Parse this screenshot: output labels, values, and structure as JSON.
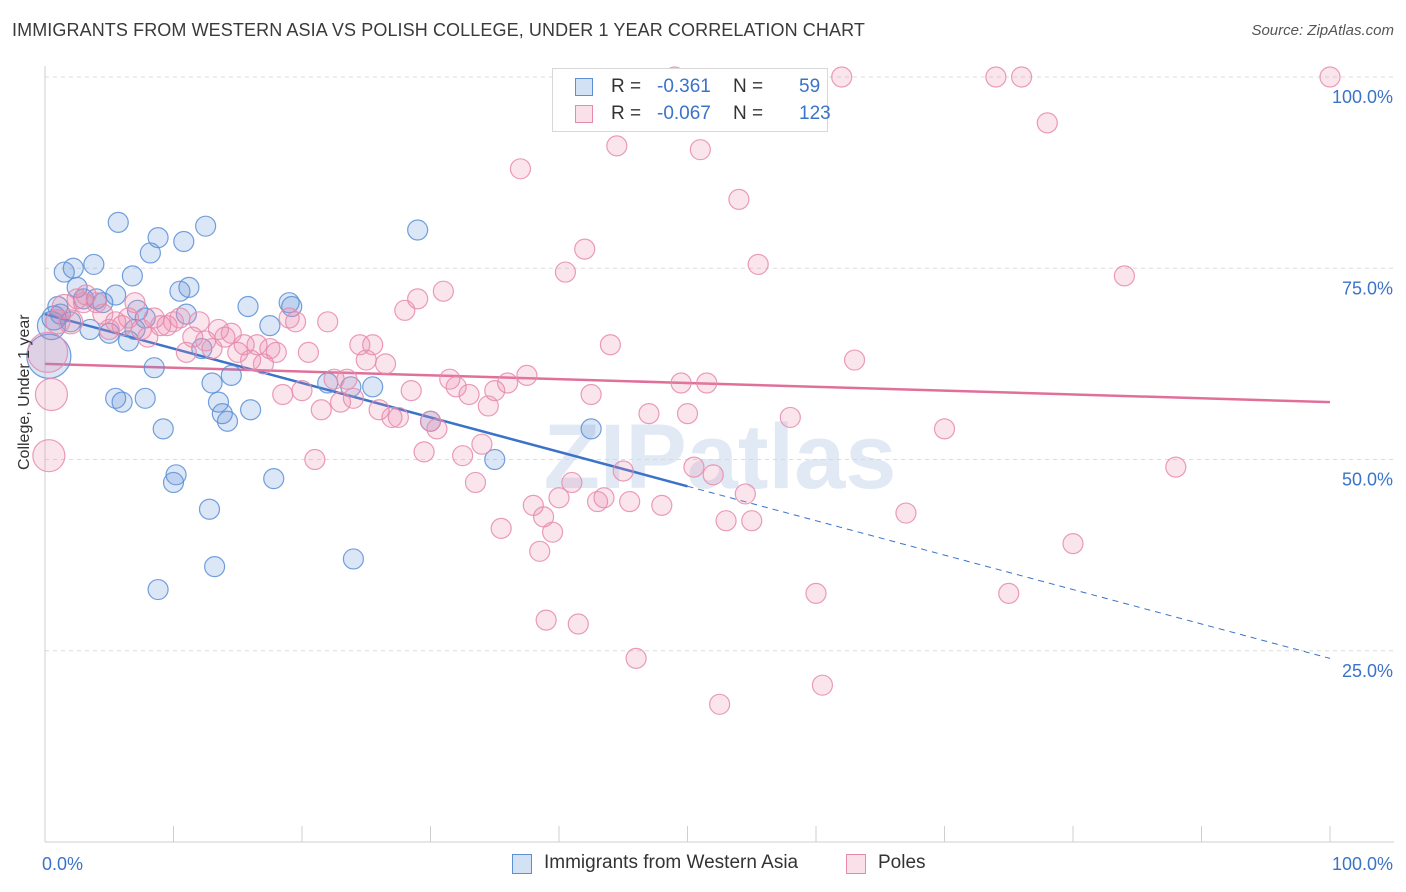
{
  "header": {
    "title": "IMMIGRANTS FROM WESTERN ASIA VS POLISH COLLEGE, UNDER 1 YEAR CORRELATION CHART",
    "source": "Source: ZipAtlas.com"
  },
  "watermark": "ZIPatlas",
  "legend": {
    "r_label": "R =",
    "n_label": "N =",
    "rows": [
      {
        "r": "-0.361",
        "n": "59",
        "color": "#5b8fd6"
      },
      {
        "r": "-0.067",
        "n": "123",
        "color": "#e88aab"
      }
    ]
  },
  "chart_data": {
    "type": "scatter",
    "ylabel": "College, Under 1 year",
    "x_tick_labels": [
      "0.0%",
      "100.0%"
    ],
    "y_tick_labels": [
      "25.0%",
      "50.0%",
      "75.0%",
      "100.0%"
    ],
    "xlim": [
      0,
      100
    ],
    "ylim": [
      0,
      100
    ],
    "grid": true,
    "legend_placement": "top-center",
    "series": [
      {
        "name": "Immigrants from Western Asia",
        "color": "#5b8fd6",
        "points": [
          [
            0.3,
            63.5,
            22
          ],
          [
            0.5,
            67.5,
            14
          ],
          [
            0.7,
            68.5,
            12
          ],
          [
            1,
            70,
            10
          ],
          [
            1.2,
            69,
            10
          ],
          [
            1.5,
            74.5,
            10
          ],
          [
            2,
            68,
            10
          ],
          [
            2.2,
            75,
            10
          ],
          [
            2.5,
            72.5,
            10
          ],
          [
            3,
            71,
            10
          ],
          [
            3.5,
            67,
            10
          ],
          [
            3.8,
            75.5,
            10
          ],
          [
            4,
            71,
            10
          ],
          [
            4.5,
            70.5,
            10
          ],
          [
            5,
            66.5,
            10
          ],
          [
            5.5,
            71.5,
            10
          ],
          [
            5.5,
            58,
            10
          ],
          [
            5.7,
            81,
            10
          ],
          [
            6,
            57.5,
            10
          ],
          [
            6.5,
            65.5,
            10
          ],
          [
            6.8,
            74,
            10
          ],
          [
            7,
            67,
            10
          ],
          [
            7.2,
            69.5,
            10
          ],
          [
            7.8,
            68.5,
            10
          ],
          [
            7.8,
            58,
            10
          ],
          [
            8.2,
            77,
            10
          ],
          [
            8.5,
            62,
            10
          ],
          [
            8.8,
            79,
            10
          ],
          [
            8.8,
            33,
            10
          ],
          [
            9.2,
            54,
            10
          ],
          [
            10,
            47,
            10
          ],
          [
            10.2,
            48,
            10
          ],
          [
            10.5,
            72,
            10
          ],
          [
            10.8,
            78.5,
            10
          ],
          [
            11,
            69,
            10
          ],
          [
            11.2,
            72.5,
            10
          ],
          [
            12.2,
            64.5,
            10
          ],
          [
            12.5,
            80.5,
            10
          ],
          [
            12.8,
            43.5,
            10
          ],
          [
            13,
            60,
            10
          ],
          [
            13.2,
            36,
            10
          ],
          [
            13.5,
            57.5,
            10
          ],
          [
            13.8,
            56,
            10
          ],
          [
            14.2,
            55,
            10
          ],
          [
            14.5,
            61,
            10
          ],
          [
            15.8,
            70,
            10
          ],
          [
            16,
            56.5,
            10
          ],
          [
            17.5,
            67.5,
            10
          ],
          [
            17.8,
            47.5,
            10
          ],
          [
            19,
            70.5,
            10
          ],
          [
            19.2,
            70,
            10
          ],
          [
            22,
            60,
            10
          ],
          [
            23.8,
            59.5,
            10
          ],
          [
            24,
            37,
            10
          ],
          [
            25.5,
            59.5,
            10
          ],
          [
            29,
            80,
            10
          ],
          [
            30,
            55,
            10
          ],
          [
            35,
            50,
            10
          ],
          [
            42.5,
            54,
            10
          ]
        ]
      },
      {
        "name": "Poles",
        "color": "#e88aab",
        "points": [
          [
            0.2,
            64,
            20
          ],
          [
            0.3,
            50.5,
            16
          ],
          [
            0.5,
            58.5,
            16
          ],
          [
            1,
            68,
            12
          ],
          [
            1.5,
            70,
            12
          ],
          [
            2,
            68,
            12
          ],
          [
            2.5,
            71,
            10
          ],
          [
            3,
            70.5,
            10
          ],
          [
            3.2,
            71.5,
            10
          ],
          [
            4,
            70.5,
            10
          ],
          [
            4.5,
            69,
            10
          ],
          [
            5,
            67,
            10
          ],
          [
            5.5,
            68,
            10
          ],
          [
            6,
            67.5,
            10
          ],
          [
            6.5,
            68.5,
            10
          ],
          [
            7,
            70.5,
            10
          ],
          [
            7.5,
            67,
            10
          ],
          [
            8,
            66,
            10
          ],
          [
            8.5,
            68.5,
            10
          ],
          [
            9,
            67.5,
            10
          ],
          [
            9.5,
            67.5,
            10
          ],
          [
            10,
            68,
            10
          ],
          [
            10.5,
            68.5,
            10
          ],
          [
            11,
            64,
            10
          ],
          [
            11.5,
            66,
            10
          ],
          [
            12,
            68,
            10
          ],
          [
            12.5,
            65.5,
            10
          ],
          [
            13,
            64.5,
            10
          ],
          [
            13.5,
            67,
            10
          ],
          [
            14,
            66,
            10
          ],
          [
            14.5,
            66.5,
            10
          ],
          [
            15,
            64,
            10
          ],
          [
            15.5,
            65,
            10
          ],
          [
            16,
            63,
            10
          ],
          [
            16.5,
            65,
            10
          ],
          [
            17,
            62.5,
            10
          ],
          [
            17.5,
            64.5,
            10
          ],
          [
            18,
            64,
            10
          ],
          [
            18.5,
            58.5,
            10
          ],
          [
            19,
            68.5,
            10
          ],
          [
            19.5,
            68,
            10
          ],
          [
            20,
            59,
            10
          ],
          [
            20.5,
            64,
            10
          ],
          [
            21,
            50,
            10
          ],
          [
            21.5,
            56.5,
            10
          ],
          [
            22,
            68,
            10
          ],
          [
            22.5,
            60.5,
            10
          ],
          [
            23,
            57.5,
            10
          ],
          [
            23.5,
            60.5,
            10
          ],
          [
            24,
            58,
            10
          ],
          [
            24.5,
            65,
            10
          ],
          [
            25,
            63,
            10
          ],
          [
            25.5,
            65,
            10
          ],
          [
            26,
            56.5,
            10
          ],
          [
            26.5,
            62.5,
            10
          ],
          [
            27,
            55.5,
            10
          ],
          [
            27.5,
            55.5,
            10
          ],
          [
            28,
            69.5,
            10
          ],
          [
            28.5,
            59,
            10
          ],
          [
            29,
            71,
            10
          ],
          [
            29.5,
            51,
            10
          ],
          [
            30,
            55,
            10
          ],
          [
            30.5,
            54,
            10
          ],
          [
            31,
            72,
            10
          ],
          [
            31.5,
            60.5,
            10
          ],
          [
            32,
            59.5,
            10
          ],
          [
            32.5,
            50.5,
            10
          ],
          [
            33,
            58.5,
            10
          ],
          [
            33.5,
            47,
            10
          ],
          [
            34,
            52,
            10
          ],
          [
            34.5,
            57,
            10
          ],
          [
            35,
            59,
            10
          ],
          [
            35.5,
            41,
            10
          ],
          [
            36,
            60,
            10
          ],
          [
            37,
            88,
            10
          ],
          [
            37.5,
            61,
            10
          ],
          [
            38,
            44,
            10
          ],
          [
            38.5,
            38,
            10
          ],
          [
            38.8,
            42.5,
            10
          ],
          [
            39,
            29,
            10
          ],
          [
            39.5,
            40.5,
            10
          ],
          [
            40,
            45,
            10
          ],
          [
            40.5,
            74.5,
            10
          ],
          [
            41,
            47,
            10
          ],
          [
            41.5,
            28.5,
            10
          ],
          [
            42,
            77.5,
            10
          ],
          [
            42.5,
            58.5,
            10
          ],
          [
            43,
            44.5,
            10
          ],
          [
            43.5,
            45,
            10
          ],
          [
            44,
            65,
            10
          ],
          [
            44.5,
            91,
            10
          ],
          [
            45,
            48.5,
            10
          ],
          [
            45.5,
            44.5,
            10
          ],
          [
            46,
            24,
            10
          ],
          [
            47,
            56,
            10
          ],
          [
            48,
            44,
            10
          ],
          [
            49,
            100,
            10
          ],
          [
            49.5,
            60,
            10
          ],
          [
            50,
            56,
            10
          ],
          [
            50.5,
            49,
            10
          ],
          [
            51,
            90.5,
            10
          ],
          [
            51.5,
            60,
            10
          ],
          [
            52,
            48,
            10
          ],
          [
            52.5,
            18,
            10
          ],
          [
            53,
            42,
            10
          ],
          [
            54,
            84,
            10
          ],
          [
            54.5,
            45.5,
            10
          ],
          [
            55,
            42,
            10
          ],
          [
            55.5,
            75.5,
            10
          ],
          [
            58,
            55.5,
            10
          ],
          [
            60,
            32.5,
            10
          ],
          [
            60.5,
            20.5,
            10
          ],
          [
            62,
            100,
            10
          ],
          [
            63,
            63,
            10
          ],
          [
            67,
            43,
            10
          ],
          [
            70,
            54,
            10
          ],
          [
            74,
            100,
            10
          ],
          [
            75,
            32.5,
            10
          ],
          [
            76,
            100,
            10
          ],
          [
            78,
            94,
            10
          ],
          [
            80,
            39,
            10
          ],
          [
            84,
            74,
            10
          ],
          [
            88,
            49,
            10
          ],
          [
            100,
            100,
            10
          ]
        ]
      }
    ],
    "trendlines": [
      {
        "series": "Immigrants from Western Asia",
        "x": [
          0,
          50
        ],
        "y": [
          69,
          46.5
        ],
        "dashed_extension_to": [
          100,
          24
        ]
      },
      {
        "series": "Poles",
        "x": [
          0,
          100
        ],
        "y": [
          62.5,
          57.5
        ]
      }
    ]
  }
}
